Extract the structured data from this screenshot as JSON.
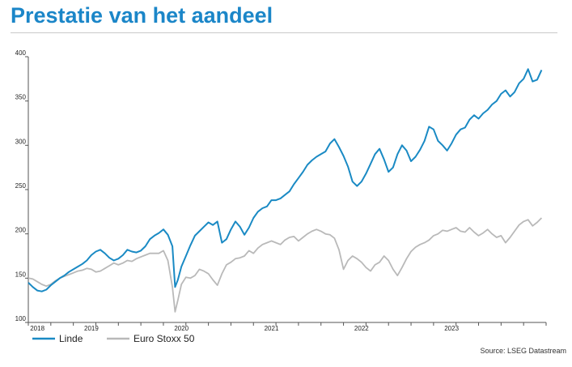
{
  "header": {
    "title": "Prestatie van het aandeel"
  },
  "chart_data": {
    "type": "line",
    "title": "",
    "xlabel": "",
    "ylabel": "",
    "ylim": [
      100,
      400
    ],
    "yticks": [
      100,
      150,
      200,
      250,
      300,
      350,
      400
    ],
    "xlim": [
      2018.0,
      2023.75
    ],
    "xtick_labels": [
      {
        "label": "2018",
        "x": 2018.1
      },
      {
        "label": "2019",
        "x": 2018.7
      },
      {
        "label": "2020",
        "x": 2019.7
      },
      {
        "label": "2021",
        "x": 2020.7
      },
      {
        "label": "2022",
        "x": 2021.7
      },
      {
        "label": "2023",
        "x": 2022.7
      }
    ],
    "grid": false,
    "legend_position": "bottom-left",
    "series": [
      {
        "name": "Linde",
        "color": "#1a8ac4",
        "x": [
          2018.0,
          2018.05,
          2018.1,
          2018.15,
          2018.2,
          2018.25,
          2018.3,
          2018.35,
          2018.4,
          2018.45,
          2018.5,
          2018.55,
          2018.6,
          2018.65,
          2018.7,
          2018.75,
          2018.8,
          2018.85,
          2018.9,
          2018.95,
          2019.0,
          2019.05,
          2019.1,
          2019.15,
          2019.2,
          2019.25,
          2019.3,
          2019.35,
          2019.4,
          2019.45,
          2019.5,
          2019.55,
          2019.6,
          2019.63,
          2019.66,
          2019.7,
          2019.75,
          2019.8,
          2019.85,
          2019.9,
          2019.95,
          2020.0,
          2020.05,
          2020.1,
          2020.15,
          2020.2,
          2020.25,
          2020.3,
          2020.35,
          2020.4,
          2020.45,
          2020.5,
          2020.55,
          2020.6,
          2020.65,
          2020.7,
          2020.75,
          2020.8,
          2020.85,
          2020.9,
          2020.95,
          2021.0,
          2021.05,
          2021.1,
          2021.15,
          2021.2,
          2021.25,
          2021.3,
          2021.35,
          2021.4,
          2021.45,
          2021.5,
          2021.55,
          2021.6,
          2021.65,
          2021.7,
          2021.75,
          2021.8,
          2021.85,
          2021.9,
          2021.95,
          2022.0,
          2022.05,
          2022.1,
          2022.15,
          2022.2,
          2022.25,
          2022.3,
          2022.35,
          2022.4,
          2022.45,
          2022.5,
          2022.55,
          2022.6,
          2022.65,
          2022.7,
          2022.75,
          2022.8,
          2022.85,
          2022.9,
          2022.95,
          2023.0,
          2023.05,
          2023.1,
          2023.15,
          2023.2,
          2023.25,
          2023.3,
          2023.35,
          2023.4,
          2023.45,
          2023.5,
          2023.55,
          2023.6,
          2023.65,
          2023.7
        ],
        "values": [
          145,
          140,
          136,
          135,
          137,
          142,
          146,
          150,
          153,
          157,
          160,
          163,
          166,
          170,
          176,
          180,
          182,
          178,
          173,
          170,
          172,
          176,
          182,
          180,
          179,
          181,
          186,
          194,
          198,
          201,
          205,
          199,
          186,
          140,
          148,
          163,
          175,
          187,
          198,
          203,
          208,
          213,
          210,
          214,
          190,
          194,
          205,
          214,
          208,
          199,
          207,
          218,
          225,
          229,
          231,
          238,
          238,
          240,
          244,
          248,
          256,
          263,
          270,
          278,
          283,
          287,
          290,
          293,
          302,
          307,
          298,
          288,
          276,
          259,
          254,
          259,
          268,
          279,
          290,
          296,
          284,
          270,
          275,
          290,
          300,
          294,
          282,
          287,
          295,
          305,
          321,
          318,
          305,
          300,
          294,
          302,
          312,
          318,
          320,
          329,
          334,
          330,
          336,
          340,
          346,
          350,
          358,
          362,
          355,
          360,
          370,
          375,
          386,
          372,
          374,
          385
        ]
      },
      {
        "name": "Euro Stoxx 50",
        "color": "#b9b9b9",
        "x": [
          2018.0,
          2018.05,
          2018.1,
          2018.15,
          2018.2,
          2018.25,
          2018.3,
          2018.35,
          2018.4,
          2018.45,
          2018.5,
          2018.55,
          2018.6,
          2018.65,
          2018.7,
          2018.75,
          2018.8,
          2018.85,
          2018.9,
          2018.95,
          2019.0,
          2019.05,
          2019.1,
          2019.15,
          2019.2,
          2019.25,
          2019.3,
          2019.35,
          2019.4,
          2019.45,
          2019.5,
          2019.55,
          2019.6,
          2019.63,
          2019.66,
          2019.7,
          2019.75,
          2019.8,
          2019.85,
          2019.9,
          2019.95,
          2020.0,
          2020.05,
          2020.1,
          2020.15,
          2020.2,
          2020.25,
          2020.3,
          2020.35,
          2020.4,
          2020.45,
          2020.5,
          2020.55,
          2020.6,
          2020.65,
          2020.7,
          2020.75,
          2020.8,
          2020.85,
          2020.9,
          2020.95,
          2021.0,
          2021.05,
          2021.1,
          2021.15,
          2021.2,
          2021.25,
          2021.3,
          2021.35,
          2021.4,
          2021.45,
          2021.5,
          2021.55,
          2021.6,
          2021.65,
          2021.7,
          2021.75,
          2021.8,
          2021.85,
          2021.9,
          2021.95,
          2022.0,
          2022.05,
          2022.1,
          2022.15,
          2022.2,
          2022.25,
          2022.3,
          2022.35,
          2022.4,
          2022.45,
          2022.5,
          2022.55,
          2022.6,
          2022.65,
          2022.7,
          2022.75,
          2022.8,
          2022.85,
          2022.9,
          2022.95,
          2023.0,
          2023.05,
          2023.1,
          2023.15,
          2023.2,
          2023.25,
          2023.3,
          2023.35,
          2023.4,
          2023.45,
          2023.5,
          2023.55,
          2023.6,
          2023.65,
          2023.7
        ],
        "values": [
          150,
          149,
          146,
          143,
          141,
          143,
          147,
          150,
          152,
          154,
          156,
          158,
          159,
          161,
          160,
          157,
          158,
          161,
          164,
          167,
          165,
          167,
          170,
          169,
          172,
          174,
          176,
          178,
          178,
          178,
          181,
          170,
          140,
          112,
          125,
          143,
          151,
          150,
          153,
          160,
          158,
          155,
          148,
          142,
          155,
          165,
          168,
          172,
          173,
          175,
          181,
          178,
          184,
          188,
          190,
          192,
          190,
          188,
          193,
          196,
          197,
          192,
          196,
          200,
          203,
          205,
          203,
          200,
          199,
          195,
          182,
          160,
          170,
          175,
          172,
          168,
          162,
          158,
          165,
          168,
          175,
          170,
          160,
          153,
          162,
          172,
          180,
          185,
          188,
          190,
          193,
          198,
          200,
          204,
          203,
          205,
          207,
          203,
          202,
          207,
          202,
          198,
          201,
          205,
          200,
          196,
          198,
          190,
          196,
          203,
          210,
          214,
          216,
          209,
          213,
          218
        ]
      }
    ]
  },
  "source": "Source: LSEG Datastream"
}
